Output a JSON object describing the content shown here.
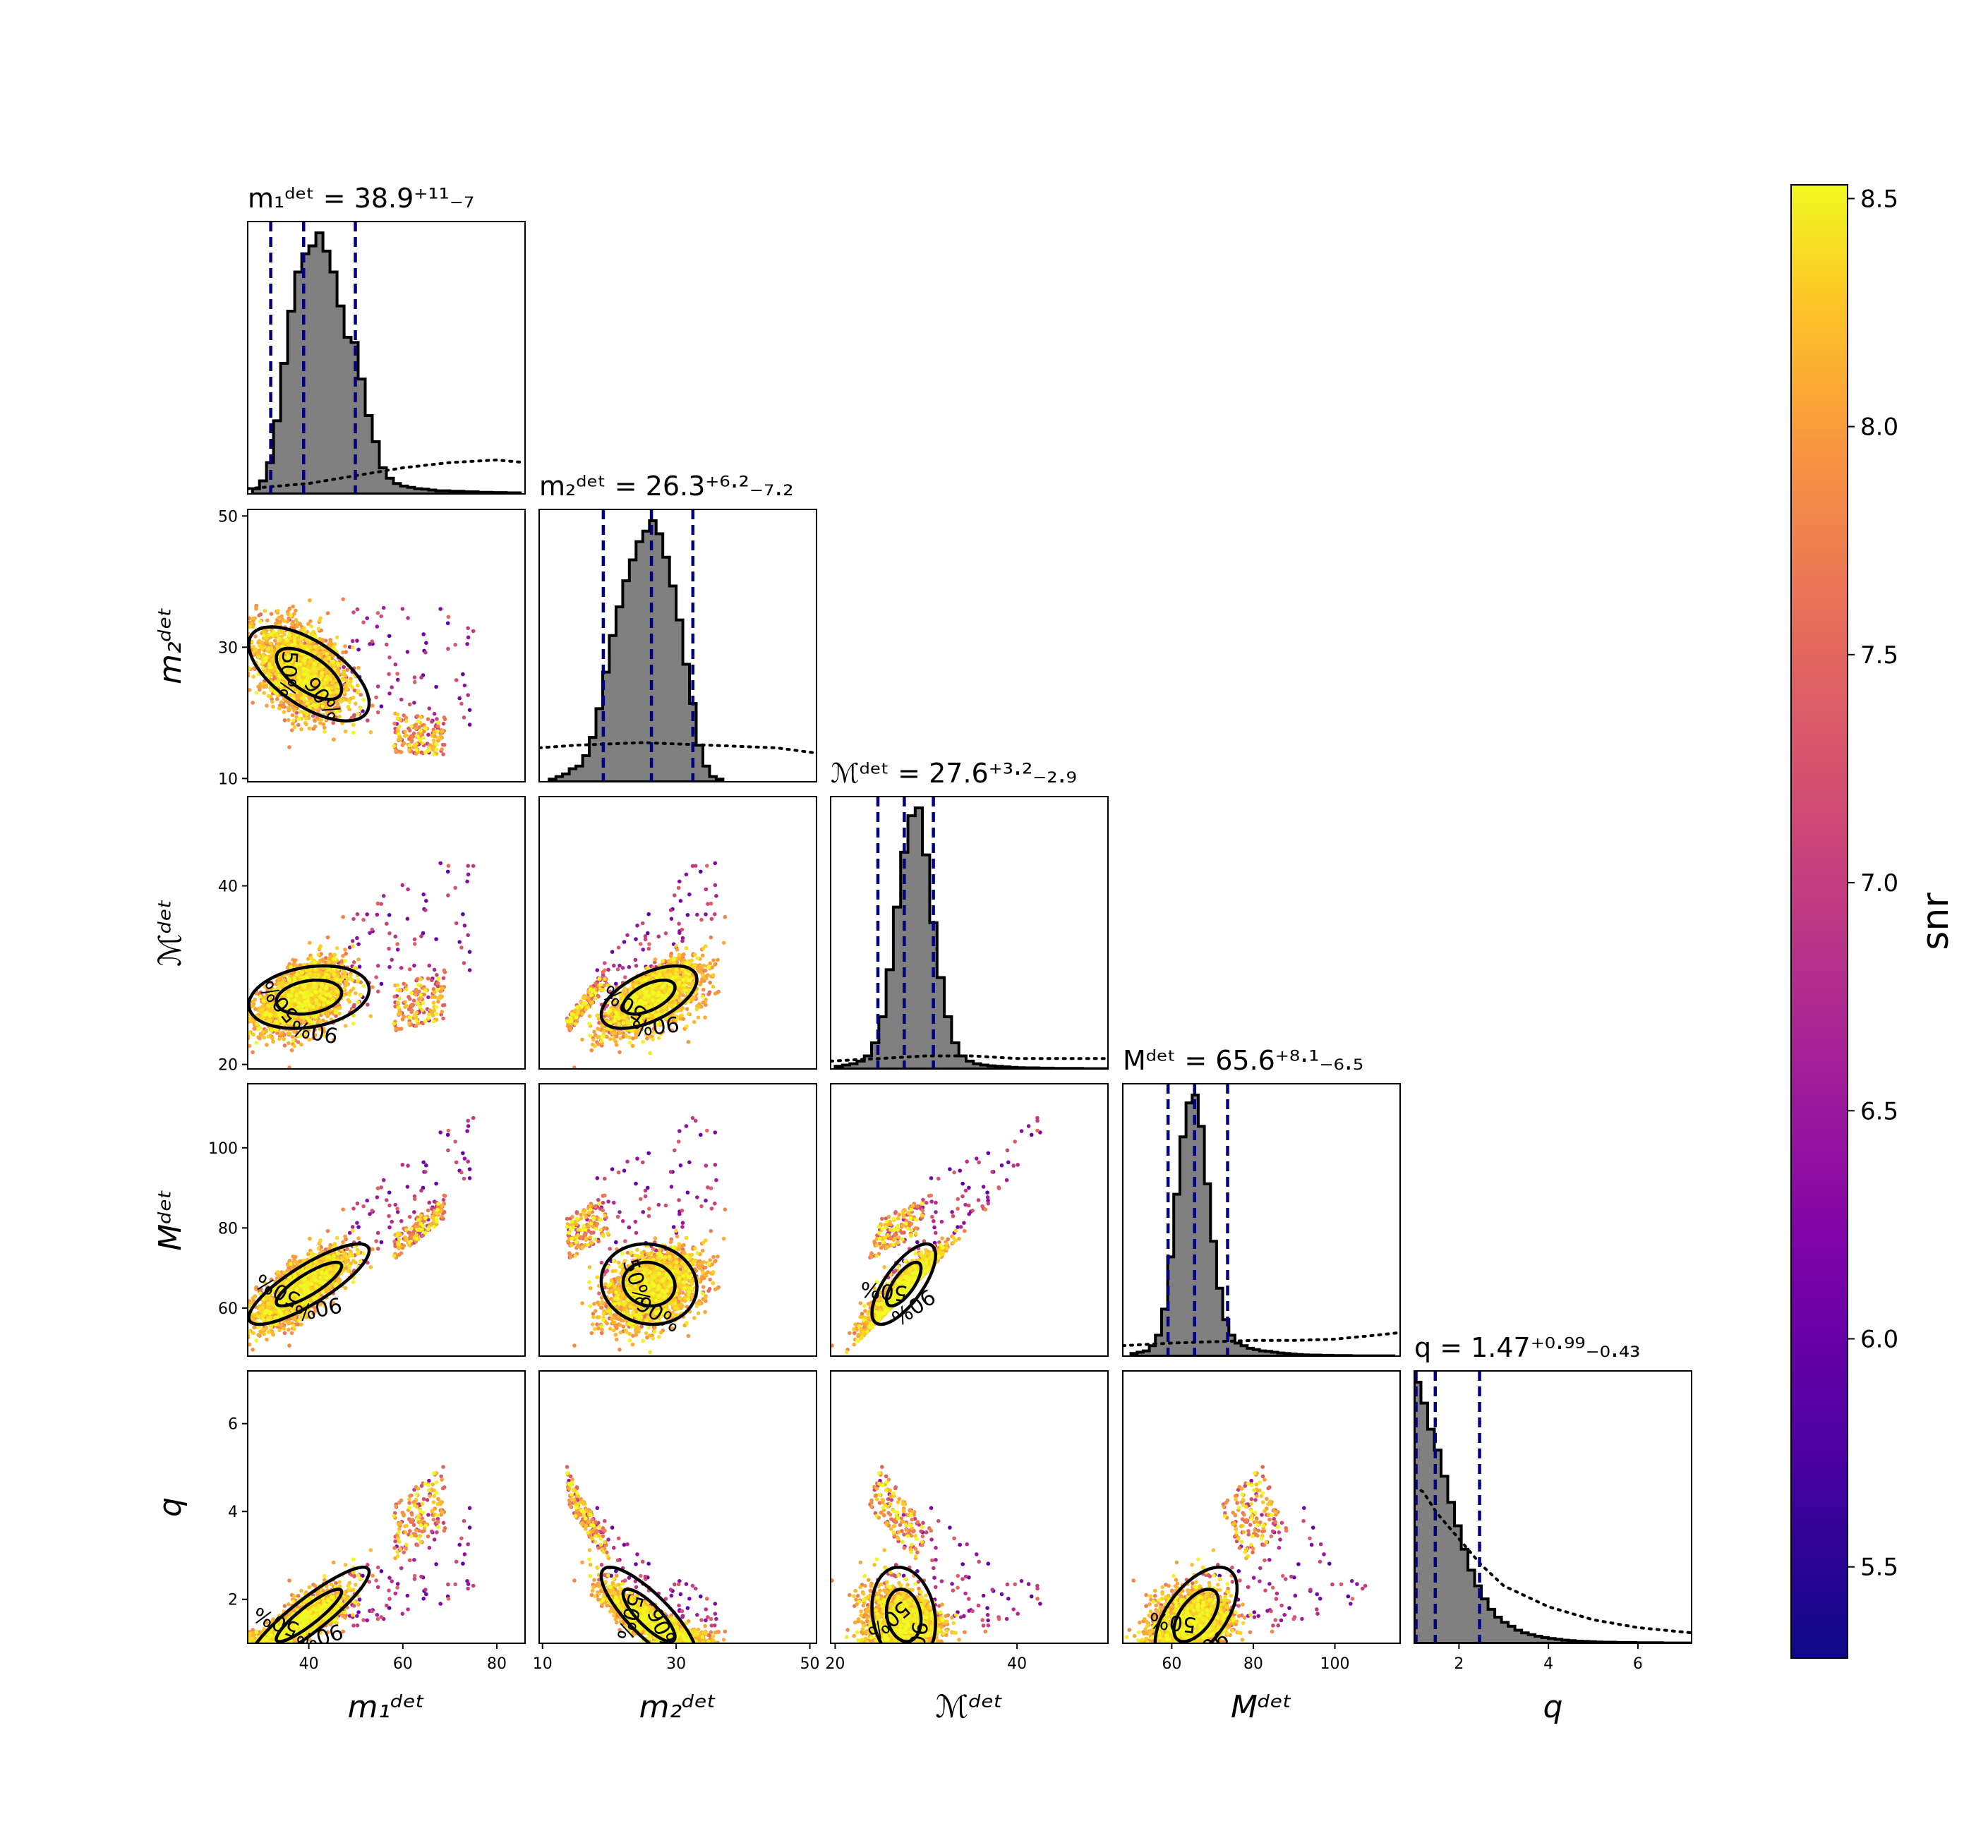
{
  "chart_data": {
    "type": "scatter",
    "description_type": "corner-plot",
    "parameters": [
      {
        "key": "m1",
        "label": "m₁ᵈᵉᵗ",
        "range": [
          27,
          86
        ],
        "ticks": [
          40,
          60,
          80
        ],
        "title": "m₁ᵈᵉᵗ = 38.9⁺¹¹₋₇",
        "median": 38.9,
        "lower": 31.9,
        "upper": 49.9
      },
      {
        "key": "m2",
        "label": "m₂ᵈᵉᵗ",
        "range": [
          9.5,
          51
        ],
        "ticks": [
          10,
          30,
          50
        ],
        "title": "m₂ᵈᵉᵗ = 26.3⁺⁶·²₋₇.₂",
        "median": 26.3,
        "lower": 19.1,
        "upper": 32.5
      },
      {
        "key": "mc",
        "label": "ℳᵈᵉᵗ",
        "range": [
          19.5,
          50
        ],
        "ticks": [
          20,
          40
        ],
        "title": "ℳᵈᵉᵗ = 27.6⁺³·²₋₂.₉",
        "median": 27.6,
        "lower": 24.7,
        "upper": 30.8
      },
      {
        "key": "mt",
        "label": "Mᵈᵉᵗ",
        "range": [
          48,
          116
        ],
        "ticks": [
          60,
          80,
          100
        ],
        "title": "Mᵈᵉᵗ = 65.6⁺⁸·¹₋₆.₅",
        "median": 65.6,
        "lower": 59.1,
        "upper": 73.7
      },
      {
        "key": "q",
        "label": "q",
        "range": [
          1,
          7.2
        ],
        "ticks": [
          2,
          4,
          6
        ],
        "title": "q = 1.47⁺⁰·⁹⁹₋₀.₄₃",
        "median": 1.47,
        "lower": 1.04,
        "upper": 2.46
      }
    ],
    "marginals": {
      "m1": {
        "bin_start": 28,
        "bin_width": 1.5,
        "heights": [
          0.02,
          0.05,
          0.12,
          0.28,
          0.5,
          0.7,
          0.85,
          0.92,
          0.95,
          1.0,
          0.93,
          0.85,
          0.72,
          0.6,
          0.58,
          0.44,
          0.3,
          0.2,
          0.1,
          0.06,
          0.04,
          0.03,
          0.025,
          0.02,
          0.018,
          0.015,
          0.012,
          0.012,
          0.01,
          0.01,
          0.008,
          0.008,
          0.006,
          0.006,
          0.005,
          0.005,
          0.004,
          0.004
        ]
      },
      "m2": {
        "bin_start": 11,
        "bin_width": 1.0,
        "heights": [
          0.01,
          0.02,
          0.03,
          0.05,
          0.06,
          0.1,
          0.17,
          0.28,
          0.42,
          0.56,
          0.67,
          0.77,
          0.85,
          0.92,
          0.96,
          1.0,
          0.95,
          0.86,
          0.75,
          0.62,
          0.45,
          0.3,
          0.14,
          0.06,
          0.02,
          0.01
        ]
      },
      "mc": {
        "bin_start": 20,
        "bin_width": 0.8,
        "heights": [
          0.01,
          0.015,
          0.02,
          0.03,
          0.05,
          0.1,
          0.2,
          0.38,
          0.62,
          0.83,
          0.97,
          1.0,
          0.82,
          0.56,
          0.35,
          0.2,
          0.1,
          0.05,
          0.03,
          0.02,
          0.015,
          0.012,
          0.01,
          0.008,
          0.006,
          0.005,
          0.004,
          0.004,
          0.003,
          0.003,
          0.002,
          0.002,
          0.002,
          0.002,
          0.001,
          0.001,
          0.001,
          0.001
        ]
      },
      "mt": {
        "bin_start": 50,
        "bin_width": 1.5,
        "heights": [
          0.01,
          0.015,
          0.02,
          0.04,
          0.08,
          0.18,
          0.38,
          0.62,
          0.84,
          0.97,
          1.0,
          0.88,
          0.66,
          0.44,
          0.26,
          0.14,
          0.08,
          0.05,
          0.04,
          0.03,
          0.025,
          0.02,
          0.018,
          0.015,
          0.012,
          0.01,
          0.008,
          0.006,
          0.005,
          0.004,
          0.004,
          0.003,
          0.003,
          0.002,
          0.002,
          0.002,
          0.001,
          0.001,
          0.001,
          0.001,
          0.001,
          0.001,
          0.001
        ]
      },
      "q": {
        "bin_start": 1.0,
        "bin_width": 0.15,
        "heights": [
          1.0,
          0.92,
          0.82,
          0.74,
          0.64,
          0.54,
          0.45,
          0.36,
          0.28,
          0.22,
          0.17,
          0.13,
          0.1,
          0.08,
          0.065,
          0.05,
          0.04,
          0.033,
          0.027,
          0.022,
          0.018,
          0.015,
          0.012,
          0.01,
          0.008,
          0.007,
          0.006,
          0.005,
          0.004,
          0.004,
          0.003,
          0.003,
          0.003,
          0.002,
          0.002,
          0.002,
          0.002,
          0.001,
          0.001,
          0.001,
          0.001
        ]
      }
    },
    "priors": {
      "m1": [
        [
          27,
          0.02
        ],
        [
          40,
          0.04
        ],
        [
          50,
          0.07
        ],
        [
          60,
          0.1
        ],
        [
          70,
          0.12
        ],
        [
          80,
          0.13
        ],
        [
          86,
          0.12
        ]
      ],
      "m2": [
        [
          9.5,
          0.13
        ],
        [
          15,
          0.14
        ],
        [
          25,
          0.15
        ],
        [
          35,
          0.14
        ],
        [
          45,
          0.13
        ],
        [
          51,
          0.11
        ]
      ],
      "mc": [
        [
          19.5,
          0.03
        ],
        [
          25,
          0.04
        ],
        [
          30,
          0.05
        ],
        [
          35,
          0.05
        ],
        [
          40,
          0.04
        ],
        [
          50,
          0.04
        ]
      ],
      "mt": [
        [
          48,
          0.04
        ],
        [
          60,
          0.05
        ],
        [
          70,
          0.055
        ],
        [
          80,
          0.06
        ],
        [
          90,
          0.06
        ],
        [
          100,
          0.065
        ],
        [
          110,
          0.08
        ],
        [
          116,
          0.09
        ]
      ],
      "q": [
        [
          1,
          0.6
        ],
        [
          1.2,
          0.58
        ],
        [
          1.5,
          0.5
        ],
        [
          2,
          0.4
        ],
        [
          2.5,
          0.3
        ],
        [
          3,
          0.22
        ],
        [
          4,
          0.14
        ],
        [
          5,
          0.09
        ],
        [
          6,
          0.06
        ],
        [
          7.2,
          0.04
        ]
      ]
    },
    "contour_labels": [
      "50%",
      "90%"
    ],
    "colorbar": {
      "label": "snr",
      "min": 5.3,
      "max": 8.53,
      "ticks": [
        "5.5",
        "6.0",
        "6.5",
        "7.0",
        "7.5",
        "8.0",
        "8.5"
      ],
      "tick_values": [
        5.5,
        6.0,
        6.5,
        7.0,
        7.5,
        8.0,
        8.5
      ],
      "colormap": "plasma"
    },
    "colors": {
      "histogram_fill": "#808080",
      "quantile_line": "#000080",
      "contour": "#000000",
      "prior_line": "#000000"
    }
  }
}
